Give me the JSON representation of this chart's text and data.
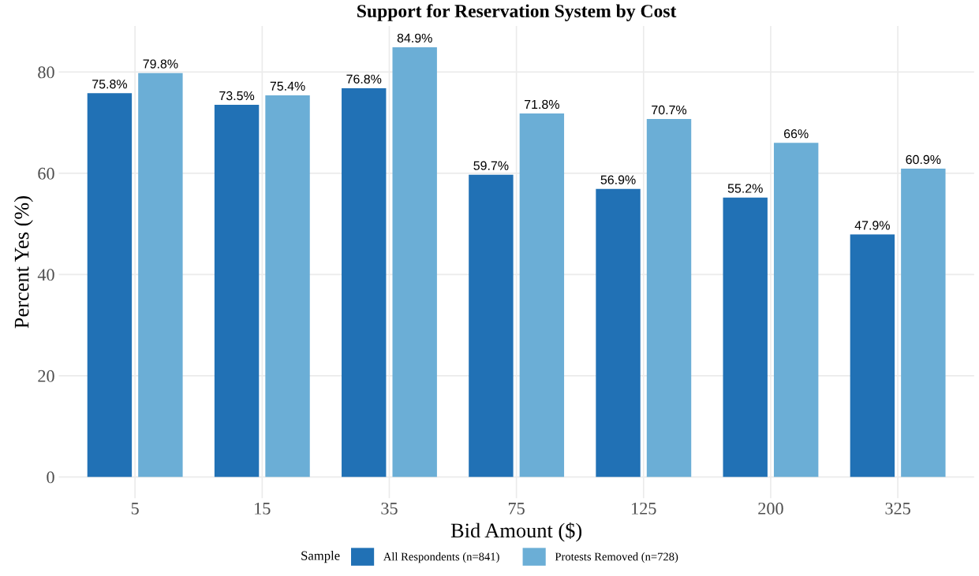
{
  "chart_data": {
    "type": "bar",
    "title": "Support for Reservation System by Cost",
    "xlabel": "Bid Amount ($)",
    "ylabel": "Percent Yes (%)",
    "categories": [
      "5",
      "15",
      "35",
      "75",
      "125",
      "200",
      "325"
    ],
    "series": [
      {
        "name": "All Respondents (n=841)",
        "color": "#2171b5",
        "values": [
          75.8,
          73.5,
          76.8,
          59.7,
          56.9,
          55.2,
          47.9
        ],
        "value_labels": [
          "75.8%",
          "73.5%",
          "76.8%",
          "59.7%",
          "56.9%",
          "55.2%",
          "47.9%"
        ]
      },
      {
        "name": "Protests Removed (n=728)",
        "color": "#6baed6",
        "values": [
          79.8,
          75.4,
          84.9,
          71.8,
          70.7,
          66,
          60.9
        ],
        "value_labels": [
          "79.8%",
          "75.4%",
          "84.9%",
          "71.8%",
          "70.7%",
          "66%",
          "60.9%"
        ]
      }
    ],
    "ylim": [
      -4.2,
      89.1
    ],
    "yticks": [
      0,
      20,
      40,
      60,
      80
    ],
    "grid": true,
    "legend": "bottom",
    "legend_title": "Sample"
  }
}
